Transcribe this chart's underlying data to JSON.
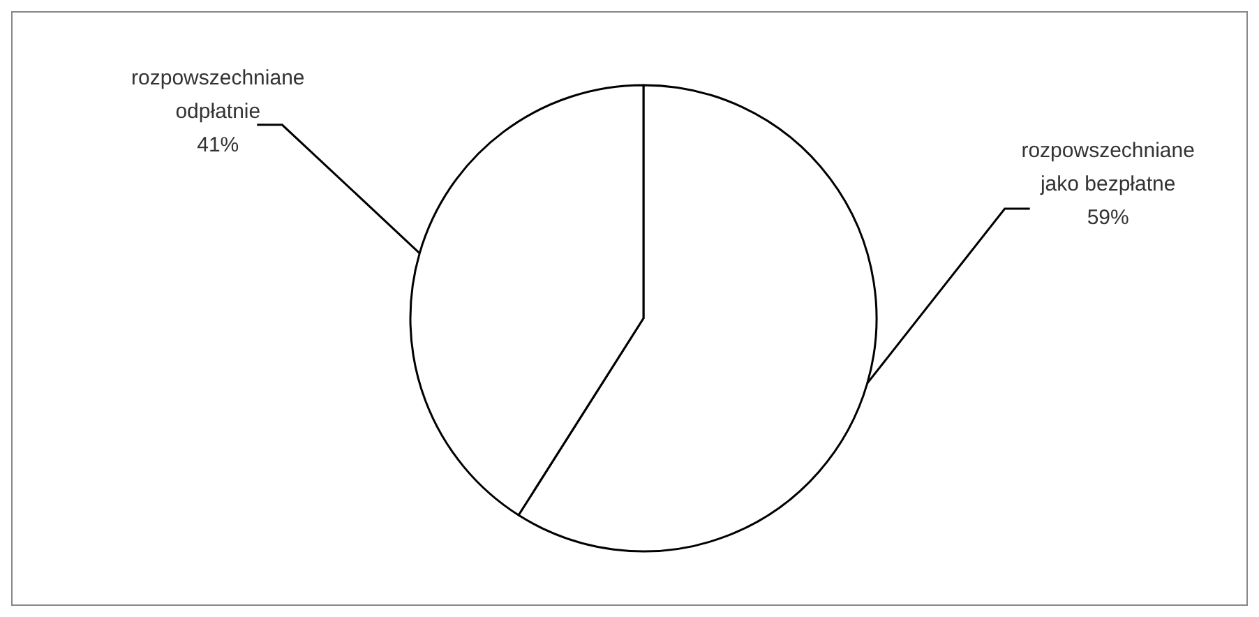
{
  "chart_data": {
    "type": "pie",
    "categories": [
      "rozpowszechniane jako bezpłatne",
      "rozpowszechniane odpłatnie"
    ],
    "values": [
      59,
      41
    ],
    "colors": [
      "#ffffff",
      "#ffffff"
    ],
    "value_labels": [
      "59%",
      "41%"
    ]
  }
}
